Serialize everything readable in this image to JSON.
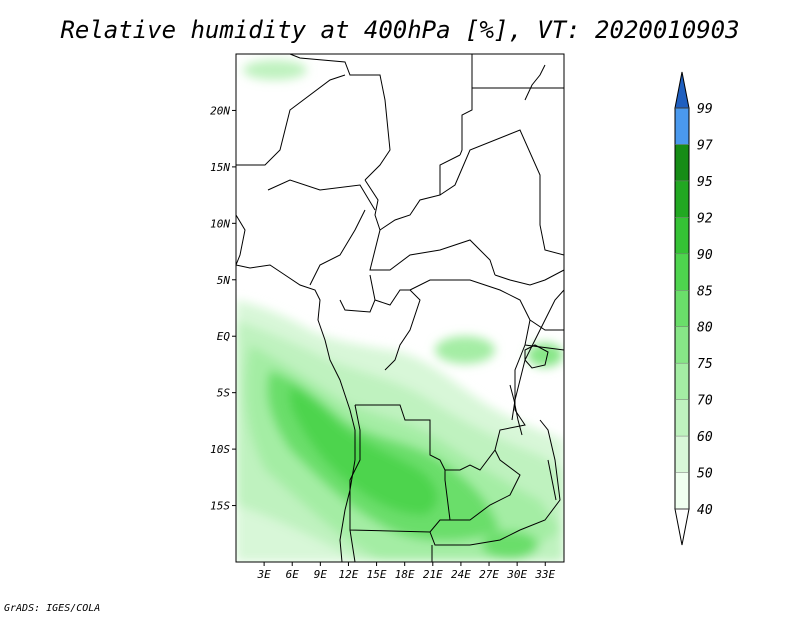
{
  "title": "Relative humidity at 400hPa [%], VT: 2020010903",
  "credit": "GrADS: IGES/COLA",
  "map": {
    "lon_range": [
      0,
      35
    ],
    "lat_range": [
      -20,
      25
    ],
    "lon_ticks": [
      {
        "value": 3,
        "label": "3E"
      },
      {
        "value": 6,
        "label": "6E"
      },
      {
        "value": 9,
        "label": "9E"
      },
      {
        "value": 12,
        "label": "12E"
      },
      {
        "value": 15,
        "label": "15E"
      },
      {
        "value": 18,
        "label": "18E"
      },
      {
        "value": 21,
        "label": "21E"
      },
      {
        "value": 24,
        "label": "24E"
      },
      {
        "value": 27,
        "label": "27E"
      },
      {
        "value": 30,
        "label": "30E"
      },
      {
        "value": 33,
        "label": "33E"
      }
    ],
    "lat_ticks": [
      {
        "value": 20,
        "label": "20N"
      },
      {
        "value": 15,
        "label": "15N"
      },
      {
        "value": 10,
        "label": "10N"
      },
      {
        "value": 5,
        "label": "5N"
      },
      {
        "value": 0,
        "label": "EQ"
      },
      {
        "value": -5,
        "label": "5S"
      },
      {
        "value": -10,
        "label": "10S"
      },
      {
        "value": -15,
        "label": "15S"
      }
    ]
  },
  "colorbar": {
    "levels": [
      {
        "label": "40",
        "color": "#f0fff0"
      },
      {
        "label": "50",
        "color": "#d8f7d8"
      },
      {
        "label": "60",
        "color": "#bff2bf"
      },
      {
        "label": "70",
        "color": "#a4eda4"
      },
      {
        "label": "75",
        "color": "#87e687"
      },
      {
        "label": "80",
        "color": "#6ade6a"
      },
      {
        "label": "85",
        "color": "#4ed44e"
      },
      {
        "label": "90",
        "color": "#35c235"
      },
      {
        "label": "92",
        "color": "#22a822"
      },
      {
        "label": "95",
        "color": "#168c16"
      },
      {
        "label": "97",
        "color": "#4a99ee"
      },
      {
        "label": "99",
        "color": "#2a78dd"
      }
    ],
    "low_color": "#ffffff",
    "high_color": "#1f5fbf"
  }
}
